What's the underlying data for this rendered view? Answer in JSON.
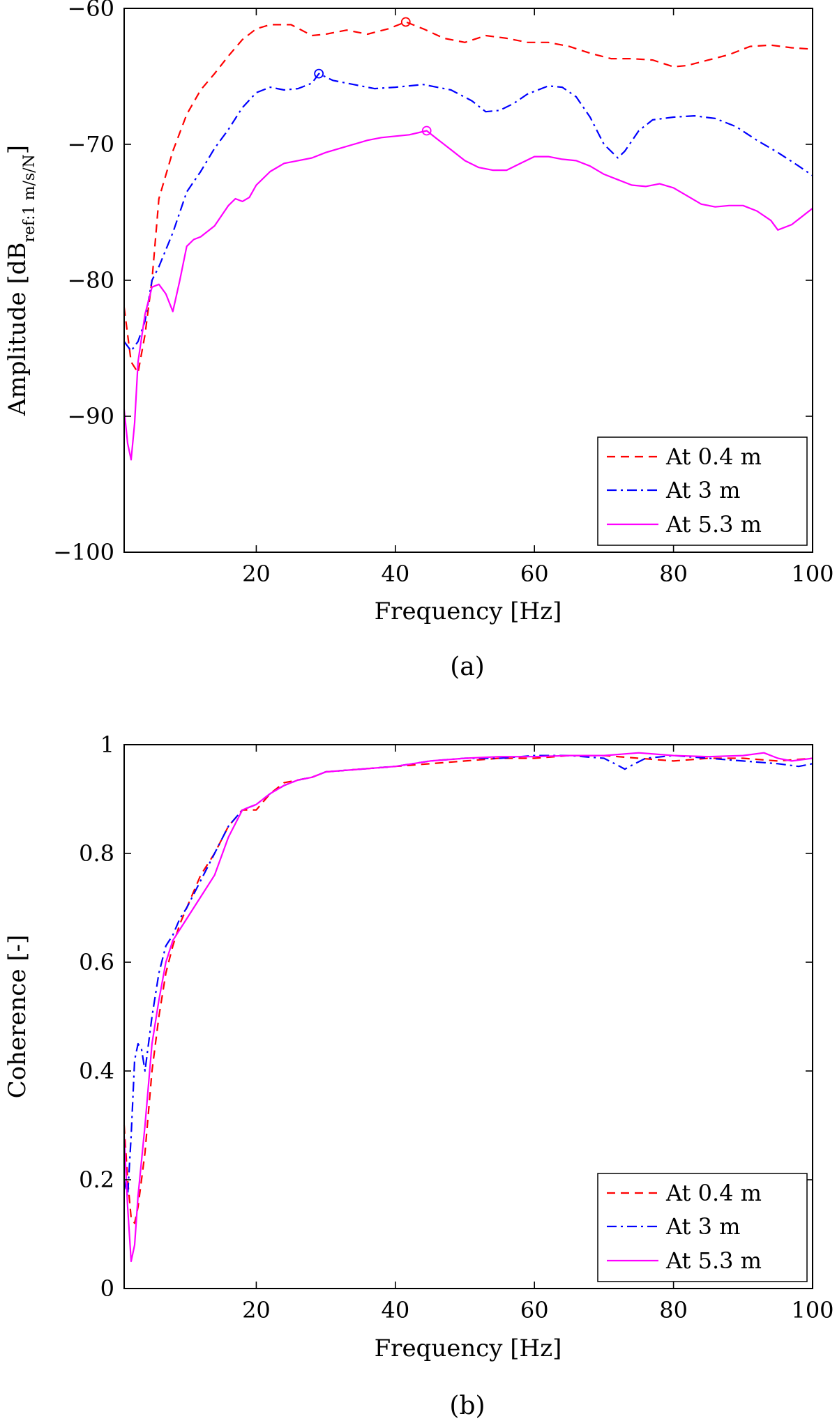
{
  "chart_data": [
    {
      "type": "line",
      "panel": "(a)",
      "xlabel": "Frequency [Hz]",
      "ylabel": "Amplitude [dB",
      "ylabel_sub": "ref:1 m/s/N",
      "ylabel_end": "]",
      "xlim": [
        1,
        100
      ],
      "ylim": [
        -100,
        -60
      ],
      "xticks": [
        20,
        40,
        60,
        80,
        100
      ],
      "yticks": [
        -100,
        -90,
        -80,
        -70,
        -60
      ],
      "ytick_labels": [
        "−100",
        "−90",
        "−80",
        "−70",
        "−60"
      ],
      "grid": false,
      "legend_position": "bottom-right",
      "series": [
        {
          "name": "At 0.4 m",
          "color": "#ff0000",
          "dash": "dashed",
          "x": [
            1,
            2,
            3,
            4,
            5,
            6,
            8,
            10,
            12,
            14,
            16,
            18,
            20,
            22,
            25,
            28,
            30,
            33,
            36,
            39,
            41.5,
            44,
            47,
            50,
            53,
            56,
            59,
            62,
            65,
            68,
            71,
            74,
            77,
            80,
            82,
            85,
            88,
            91,
            94,
            97,
            100
          ],
          "y": [
            -82,
            -86,
            -86.8,
            -84,
            -80,
            -74,
            -70.5,
            -67.8,
            -66,
            -64.8,
            -63.5,
            -62.3,
            -61.5,
            -61.2,
            -61.2,
            -62,
            -61.9,
            -61.6,
            -61.9,
            -61.5,
            -61.0,
            -61.5,
            -62.2,
            -62.5,
            -62.0,
            -62.2,
            -62.5,
            -62.5,
            -62.8,
            -63.3,
            -63.7,
            -63.7,
            -63.8,
            -64.3,
            -64.2,
            -63.8,
            -63.4,
            -62.8,
            -62.7,
            -62.9,
            -63.0
          ]
        },
        {
          "name": "At 3 m",
          "color": "#0000ff",
          "dash": "dashdot",
          "x": [
            1,
            2,
            3,
            4,
            5,
            6,
            8,
            10,
            12,
            14,
            16,
            18,
            20,
            22,
            24,
            26,
            28,
            29,
            31,
            34,
            37,
            40,
            44,
            48,
            51,
            53,
            55,
            57,
            59,
            62,
            64,
            66,
            68,
            70,
            72,
            73,
            75,
            77,
            80,
            83,
            86,
            89,
            92,
            95,
            98,
            100
          ],
          "y": [
            -84.5,
            -85.2,
            -84.5,
            -83,
            -80,
            -79,
            -76.5,
            -73.5,
            -72,
            -70.3,
            -68.9,
            -67.3,
            -66.2,
            -65.8,
            -66.0,
            -65.9,
            -65.5,
            -64.8,
            -65.3,
            -65.6,
            -65.9,
            -65.8,
            -65.6,
            -66.0,
            -66.8,
            -67.6,
            -67.5,
            -67.0,
            -66.3,
            -65.7,
            -65.8,
            -66.5,
            -68.0,
            -70.0,
            -71.0,
            -70.5,
            -69.0,
            -68.2,
            -68.0,
            -67.9,
            -68.1,
            -68.7,
            -69.7,
            -70.6,
            -71.6,
            -72.3
          ]
        },
        {
          "name": "At 5.3 m",
          "color": "#ff00ff",
          "dash": "solid",
          "x": [
            1,
            1.5,
            2,
            2.5,
            3,
            4,
            5,
            6,
            7,
            8,
            9,
            10,
            11,
            12,
            14,
            16,
            17,
            18,
            19,
            20,
            22,
            24,
            26,
            28,
            30,
            32,
            34,
            36,
            38,
            40,
            42,
            44.5,
            46,
            48,
            50,
            52,
            54,
            56,
            58,
            60,
            62,
            64,
            66,
            68,
            70,
            72,
            74,
            76,
            78,
            80,
            82,
            84,
            86,
            88,
            90,
            92,
            94,
            95,
            97,
            100
          ],
          "y": [
            -89.5,
            -92,
            -93.2,
            -90.5,
            -86,
            -82.5,
            -80.5,
            -80.3,
            -81,
            -82.3,
            -80,
            -77.5,
            -77.0,
            -76.8,
            -76.0,
            -74.5,
            -74.0,
            -74.2,
            -73.9,
            -73.0,
            -72.0,
            -71.4,
            -71.2,
            -71.0,
            -70.6,
            -70.3,
            -70.0,
            -69.7,
            -69.5,
            -69.4,
            -69.3,
            -69.0,
            -69.6,
            -70.4,
            -71.2,
            -71.7,
            -71.9,
            -71.9,
            -71.4,
            -70.9,
            -70.9,
            -71.1,
            -71.2,
            -71.6,
            -72.2,
            -72.6,
            -73.0,
            -73.1,
            -72.9,
            -73.2,
            -73.8,
            -74.4,
            -74.6,
            -74.5,
            -74.5,
            -74.9,
            -75.6,
            -76.3,
            -75.9,
            -74.7
          ]
        }
      ],
      "peak_markers": [
        {
          "series": "At 0.4 m",
          "x": 41.5,
          "y": -61.0,
          "color": "#ff0000"
        },
        {
          "series": "At 3 m",
          "x": 29,
          "y": -64.8,
          "color": "#0000ff"
        },
        {
          "series": "At 5.3 m",
          "x": 44.5,
          "y": -69.0,
          "color": "#ff00ff"
        }
      ]
    },
    {
      "type": "line",
      "panel": "(b)",
      "xlabel": "Frequency [Hz]",
      "ylabel": "Coherence [-]",
      "xlim": [
        1,
        100
      ],
      "ylim": [
        0,
        1
      ],
      "xticks": [
        20,
        40,
        60,
        80,
        100
      ],
      "yticks": [
        0,
        0.2,
        0.4,
        0.6,
        0.8,
        1
      ],
      "ytick_labels": [
        "0",
        "0.2",
        "0.4",
        "0.6",
        "0.8",
        "1"
      ],
      "grid": false,
      "legend_position": "bottom-right",
      "series": [
        {
          "name": "At 0.4 m",
          "color": "#ff0000",
          "dash": "dashed",
          "x": [
            1,
            1.5,
            2,
            2.5,
            3,
            4,
            5,
            6,
            7,
            8,
            9,
            10,
            12,
            14,
            16,
            18,
            20,
            22,
            24,
            26,
            28,
            30,
            35,
            40,
            45,
            50,
            55,
            60,
            65,
            70,
            75,
            80,
            85,
            90,
            95,
            100
          ],
          "y": [
            0.3,
            0.2,
            0.13,
            0.12,
            0.15,
            0.25,
            0.4,
            0.5,
            0.58,
            0.63,
            0.67,
            0.7,
            0.76,
            0.8,
            0.85,
            0.88,
            0.88,
            0.91,
            0.93,
            0.935,
            0.94,
            0.95,
            0.955,
            0.96,
            0.965,
            0.97,
            0.975,
            0.975,
            0.98,
            0.98,
            0.975,
            0.97,
            0.975,
            0.975,
            0.97,
            0.975
          ]
        },
        {
          "name": "At 3 m",
          "color": "#0000ff",
          "dash": "dashdot",
          "x": [
            1,
            1.5,
            2,
            2.5,
            3,
            3.5,
            4,
            5,
            6,
            7,
            8,
            9,
            10,
            12,
            14,
            16,
            18,
            20,
            22,
            24,
            26,
            28,
            30,
            35,
            40,
            45,
            50,
            55,
            60,
            65,
            70,
            72,
            73,
            74,
            76,
            80,
            85,
            90,
            95,
            98,
            100
          ],
          "y": [
            0.2,
            0.17,
            0.28,
            0.42,
            0.45,
            0.44,
            0.4,
            0.5,
            0.58,
            0.63,
            0.65,
            0.68,
            0.7,
            0.75,
            0.8,
            0.85,
            0.88,
            0.89,
            0.91,
            0.925,
            0.935,
            0.94,
            0.95,
            0.955,
            0.96,
            0.97,
            0.975,
            0.975,
            0.98,
            0.98,
            0.975,
            0.962,
            0.955,
            0.962,
            0.975,
            0.98,
            0.975,
            0.97,
            0.965,
            0.96,
            0.965
          ]
        },
        {
          "name": "At 5.3 m",
          "color": "#ff00ff",
          "dash": "solid",
          "x": [
            1,
            1.5,
            2,
            2.5,
            3,
            4,
            5,
            6,
            7,
            8,
            9,
            10,
            12,
            14,
            16,
            18,
            20,
            22,
            24,
            26,
            28,
            30,
            35,
            40,
            45,
            50,
            55,
            60,
            65,
            70,
            75,
            80,
            85,
            90,
            93,
            95,
            97,
            100
          ],
          "y": [
            0.28,
            0.15,
            0.05,
            0.08,
            0.17,
            0.3,
            0.45,
            0.53,
            0.6,
            0.64,
            0.66,
            0.68,
            0.72,
            0.76,
            0.83,
            0.88,
            0.89,
            0.91,
            0.925,
            0.935,
            0.94,
            0.95,
            0.955,
            0.96,
            0.97,
            0.975,
            0.978,
            0.978,
            0.98,
            0.98,
            0.985,
            0.98,
            0.978,
            0.98,
            0.985,
            0.975,
            0.97,
            0.975
          ]
        }
      ]
    }
  ]
}
